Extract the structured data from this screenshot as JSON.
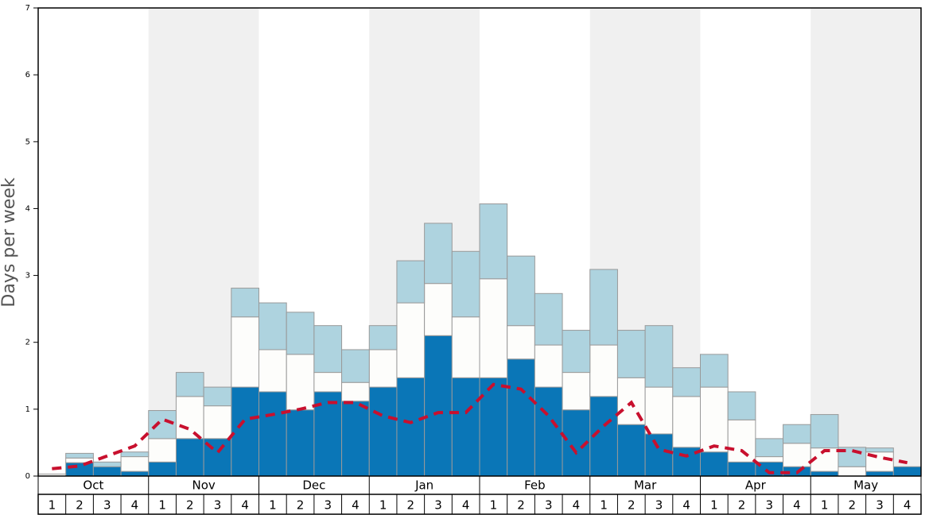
{
  "chart_data": {
    "type": "stacked-bar-line",
    "y_label": "Days per week",
    "months": [
      "Oct",
      "Nov",
      "Dec",
      "Jan",
      "Feb",
      "Mar",
      "Apr",
      "May"
    ],
    "categories": [
      "1",
      "2",
      "3",
      "4",
      "1",
      "2",
      "3",
      "4",
      "1",
      "2",
      "3",
      "4",
      "1",
      "2",
      "3",
      "4",
      "1",
      "2",
      "3",
      "4",
      "1",
      "2",
      "3",
      "4",
      "1",
      "2",
      "3",
      "4",
      "1",
      "2",
      "3",
      "4"
    ],
    "ylim": [
      0,
      7
    ],
    "yticks": [
      0,
      1,
      2,
      3,
      4,
      5,
      6,
      7
    ],
    "series": [
      {
        "color": "#0a76b7",
        "values": [
          0,
          0.2,
          0.14,
          0.07,
          0.21,
          0.56,
          0.56,
          1.33,
          1.26,
          0.99,
          1.26,
          1.12,
          1.33,
          1.47,
          2.1,
          1.47,
          1.47,
          1.75,
          1.33,
          0.99,
          1.19,
          0.77,
          0.63,
          0.43,
          0.36,
          0.21,
          0.21,
          0.14,
          0.07,
          0,
          0.07,
          0.14
        ]
      },
      {
        "color": "#fdfdfb",
        "values": [
          0.03,
          0.07,
          0,
          0.22,
          0.35,
          0.63,
          0.49,
          1.05,
          0.63,
          0.83,
          0.29,
          0.28,
          0.56,
          1.12,
          0.78,
          0.91,
          1.48,
          0.5,
          0.63,
          0.56,
          0.77,
          0.7,
          0.7,
          0.76,
          0.97,
          0.63,
          0.08,
          0.35,
          0.35,
          0.14,
          0.29,
          0
        ]
      },
      {
        "color": "#aed3df",
        "values": [
          0,
          0.07,
          0.07,
          0.07,
          0.42,
          0.36,
          0.28,
          0.43,
          0.7,
          0.63,
          0.7,
          0.49,
          0.36,
          0.63,
          0.9,
          0.98,
          1.12,
          1.04,
          0.77,
          0.63,
          1.13,
          0.71,
          0.92,
          0.43,
          0.49,
          0.42,
          0.27,
          0.28,
          0.5,
          0.29,
          0.06,
          0
        ]
      }
    ],
    "line": {
      "color": "#c8102e",
      "values": [
        0.11,
        0.15,
        0.3,
        0.45,
        0.85,
        0.7,
        0.35,
        0.85,
        0.92,
        1.0,
        1.1,
        1.1,
        0.9,
        0.8,
        0.95,
        0.95,
        1.37,
        1.3,
        0.9,
        0.35,
        0.75,
        1.1,
        0.4,
        0.3,
        0.45,
        0.38,
        0.05,
        0.05,
        0.38,
        0.38,
        0.28,
        0.2
      ]
    }
  }
}
